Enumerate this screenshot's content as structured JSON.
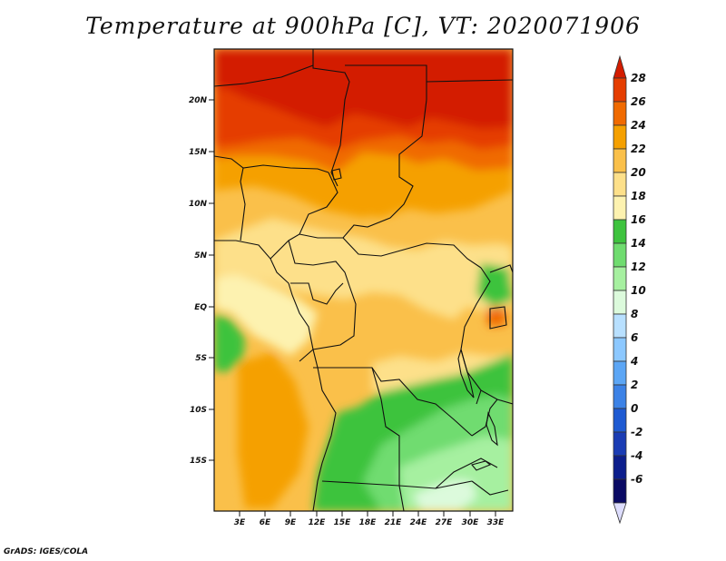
{
  "title": "Temperature at 900hPa [C], VT: 2020071906",
  "credit": "GrADS: IGES/COLA",
  "map": {
    "lat_labels": [
      "20N",
      "15N",
      "10N",
      "5N",
      "EQ",
      "5S",
      "10S",
      "15S"
    ],
    "lon_labels": [
      "3E",
      "6E",
      "9E",
      "12E",
      "15E",
      "18E",
      "21E",
      "24E",
      "27E",
      "30E",
      "33E"
    ]
  },
  "colorbar": {
    "labels": [
      "28",
      "26",
      "24",
      "22",
      "20",
      "18",
      "16",
      "14",
      "12",
      "10",
      "8",
      "6",
      "4",
      "2",
      "0",
      "-2",
      "-4",
      "-6"
    ],
    "colors": [
      "#d31c00",
      "#e53d00",
      "#f06a00",
      "#f5a000",
      "#fac04a",
      "#fde08a",
      "#fdf2b0",
      "#3ec33e",
      "#6fdc6f",
      "#a6f0a0",
      "#dcfadc",
      "#b8e0ff",
      "#8cc8ff",
      "#5ca6f5",
      "#3c82e6",
      "#1e5ad2",
      "#1a3cb4",
      "#0c1e8c",
      "#0a0a64",
      "#ddddfd"
    ]
  }
}
